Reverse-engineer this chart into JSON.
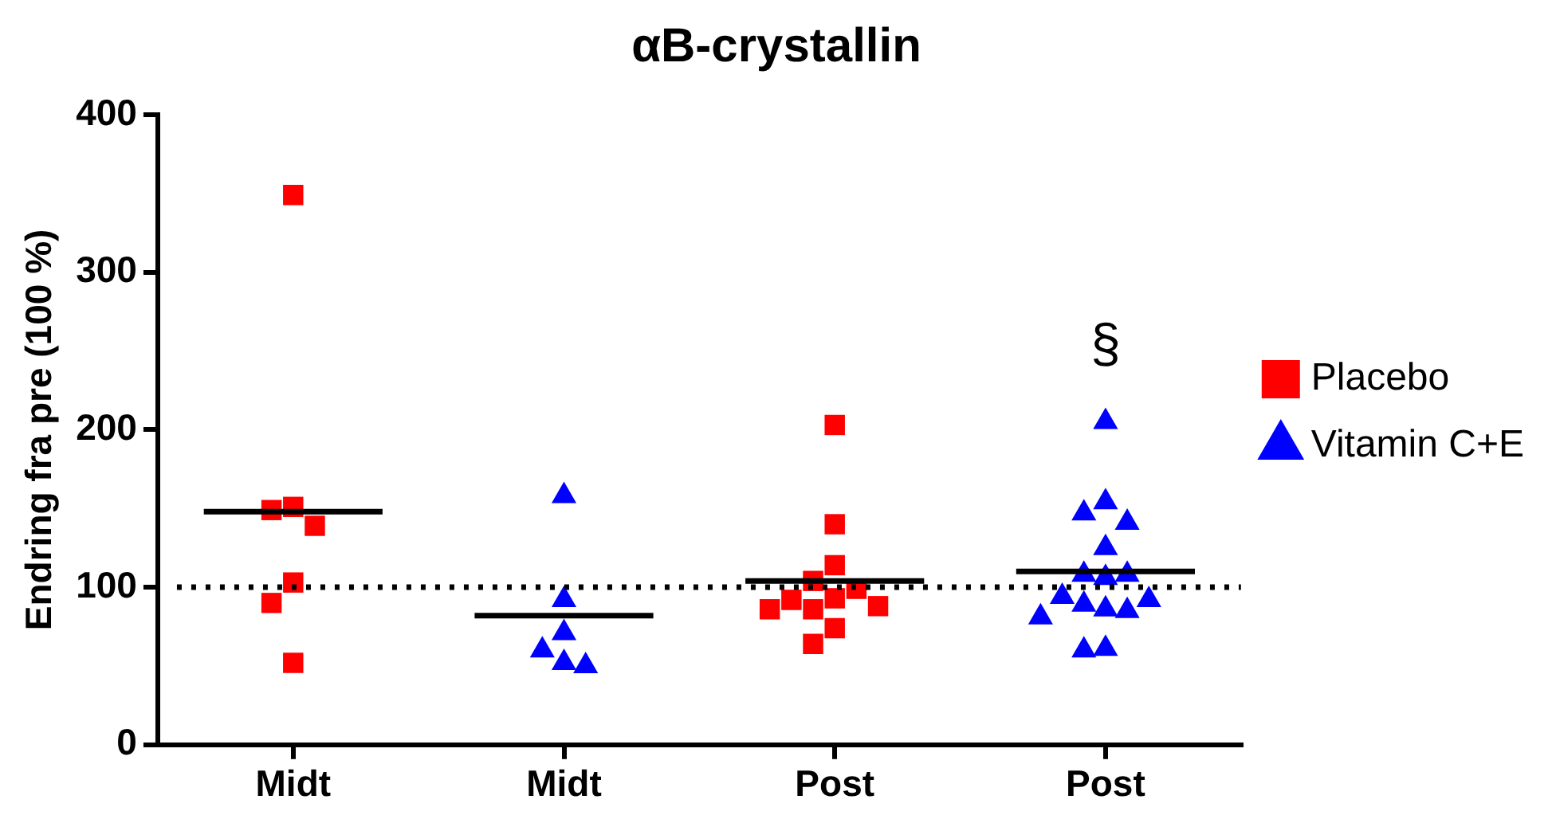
{
  "chart_data": {
    "type": "scatter",
    "title": "αB-crystallin",
    "ylabel": "Endring fra pre (100 %)",
    "categories": [
      "Midt",
      "Midt",
      "Post",
      "Post"
    ],
    "ylim": [
      0,
      400
    ],
    "yticks": [
      0,
      100,
      200,
      300,
      400
    ],
    "grid": false,
    "legend": "right",
    "series": [
      {
        "name": "Placebo",
        "color": "#ff0000",
        "marker": "square",
        "values": [
          349,
          null,
          203,
          null
        ]
      },
      {
        "color": "#ff0000",
        "marker": "square",
        "values": [
          151,
          null,
          140,
          null
        ]
      },
      {
        "color": "#ff0000",
        "marker": "square",
        "values": [
          149,
          null,
          114,
          null
        ]
      },
      {
        "color": "#ff0000",
        "marker": "square",
        "values": [
          139,
          null,
          104,
          null
        ]
      },
      {
        "color": "#ff0000",
        "marker": "square",
        "values": [
          103,
          null,
          99,
          null
        ]
      },
      {
        "color": "#ff0000",
        "marker": "square",
        "values": [
          90,
          null,
          93,
          null
        ]
      },
      {
        "color": "#ff0000",
        "marker": "square",
        "values": [
          52,
          null,
          92,
          null
        ]
      },
      {
        "color": "#ff0000",
        "marker": "square",
        "values": [
          null,
          null,
          88,
          null
        ]
      },
      {
        "color": "#ff0000",
        "marker": "square",
        "values": [
          null,
          null,
          86,
          null
        ]
      },
      {
        "color": "#ff0000",
        "marker": "square",
        "values": [
          null,
          null,
          86,
          null
        ]
      },
      {
        "color": "#ff0000",
        "marker": "square",
        "values": [
          null,
          null,
          74,
          null
        ]
      },
      {
        "color": "#ff0000",
        "marker": "square",
        "values": [
          null,
          null,
          64,
          null
        ]
      },
      {
        "name": "Vitamin C+E",
        "color": "#0000ff",
        "marker": "triangle",
        "values": [
          null,
          158,
          null,
          205
        ]
      },
      {
        "color": "#0000ff",
        "marker": "triangle",
        "values": [
          null,
          92,
          null,
          154
        ]
      },
      {
        "color": "#0000ff",
        "marker": "triangle",
        "values": [
          null,
          71,
          null,
          147
        ]
      },
      {
        "color": "#0000ff",
        "marker": "triangle",
        "values": [
          null,
          60,
          null,
          141
        ]
      },
      {
        "color": "#0000ff",
        "marker": "triangle",
        "values": [
          null,
          52,
          null,
          125
        ]
      },
      {
        "color": "#0000ff",
        "marker": "triangle",
        "values": [
          null,
          50,
          null,
          108
        ]
      },
      {
        "color": "#0000ff",
        "marker": "triangle",
        "values": [
          null,
          null,
          null,
          108
        ]
      },
      {
        "color": "#0000ff",
        "marker": "triangle",
        "values": [
          null,
          null,
          null,
          106
        ]
      },
      {
        "color": "#0000ff",
        "marker": "triangle",
        "values": [
          null,
          null,
          null,
          94
        ]
      },
      {
        "color": "#0000ff",
        "marker": "triangle",
        "values": [
          null,
          null,
          null,
          92
        ]
      },
      {
        "color": "#0000ff",
        "marker": "triangle",
        "values": [
          null,
          null,
          null,
          89
        ]
      },
      {
        "color": "#0000ff",
        "marker": "triangle",
        "values": [
          null,
          null,
          null,
          86
        ]
      },
      {
        "color": "#0000ff",
        "marker": "triangle",
        "values": [
          null,
          null,
          null,
          85
        ]
      },
      {
        "color": "#0000ff",
        "marker": "triangle",
        "values": [
          null,
          null,
          null,
          81
        ]
      },
      {
        "color": "#0000ff",
        "marker": "triangle",
        "values": [
          null,
          null,
          null,
          61
        ]
      },
      {
        "color": "#0000ff",
        "marker": "triangle",
        "values": [
          null,
          null,
          null,
          60
        ]
      }
    ],
    "ref_lines": [
      {
        "axis": "y",
        "value": 148,
        "color": "#000000",
        "line_style": "solid"
      },
      {
        "axis": "y",
        "value": 82,
        "color": "#000000",
        "line_style": "solid"
      },
      {
        "axis": "y",
        "value": 104,
        "color": "#000000",
        "line_style": "solid"
      },
      {
        "axis": "y",
        "value": 110,
        "color": "#000000",
        "line_style": "solid"
      },
      {
        "axis": "y",
        "value": 100,
        "color": "#000000",
        "line_style": "dotted"
      }
    ],
    "annotations": [
      "§"
    ]
  }
}
